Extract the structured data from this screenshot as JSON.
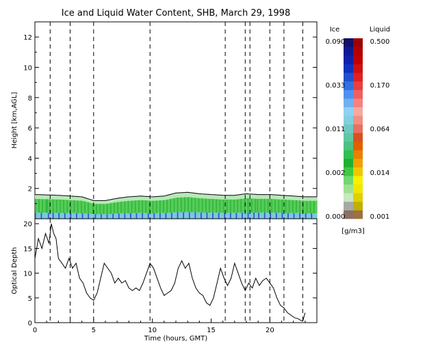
{
  "chart_data": [
    {
      "type": "heatmap",
      "title": "Ice and Liquid Water Content, SHB, March 29, 1998",
      "ylabel": "Height [km,AGL]",
      "ylim": [
        0,
        13
      ],
      "xlim": [
        0,
        24
      ],
      "y_ticks": [
        2,
        4,
        6,
        8,
        10,
        12
      ],
      "cloud_top_km": [
        [
          0,
          1.6
        ],
        [
          2,
          1.55
        ],
        [
          4,
          1.45
        ],
        [
          5,
          1.2
        ],
        [
          6,
          1.2
        ],
        [
          7,
          1.35
        ],
        [
          8,
          1.45
        ],
        [
          9,
          1.5
        ],
        [
          10,
          1.45
        ],
        [
          11,
          1.5
        ],
        [
          12,
          1.7
        ],
        [
          13,
          1.75
        ],
        [
          14,
          1.65
        ],
        [
          15,
          1.6
        ],
        [
          16,
          1.55
        ],
        [
          17,
          1.55
        ],
        [
          18,
          1.65
        ],
        [
          19,
          1.6
        ],
        [
          20,
          1.6
        ],
        [
          21,
          1.55
        ],
        [
          22,
          1.5
        ],
        [
          23,
          1.45
        ],
        [
          24,
          1.45
        ]
      ],
      "event_times_hours": [
        1.3,
        3.0,
        5.0,
        9.8,
        16.2,
        17.9,
        18.3,
        20.0,
        21.2,
        22.8
      ],
      "colorbar": {
        "ice_label": "Ice",
        "liquid_label": "Liquid",
        "units": "[g/m3]",
        "ice_ticks": [
          "0.090",
          "0.033",
          "0.011",
          "0.002",
          "0.000"
        ],
        "liquid_ticks": [
          "0.500",
          "0.170",
          "0.064",
          "0.014",
          "0.001"
        ],
        "ice_colors": [
          "#8a7060",
          "#a8a8a8",
          "#c8e8c0",
          "#a0e090",
          "#70d870",
          "#40c840",
          "#20b030",
          "#30c050",
          "#50c080",
          "#60c8a0",
          "#70c8c0",
          "#80d0e0",
          "#90d0f0",
          "#70b0f0",
          "#5090f0",
          "#3070e0",
          "#2050d0",
          "#1030c0",
          "#1020a8",
          "#101890",
          "#101070"
        ],
        "liquid_colors": [
          "#a07040",
          "#c0b000",
          "#e0d000",
          "#f0e800",
          "#f8f000",
          "#f0c800",
          "#f0a000",
          "#e88000",
          "#e06000",
          "#d85020",
          "#e87060",
          "#f09080",
          "#f8a8a0",
          "#f88080",
          "#f06060",
          "#e84040",
          "#e02020",
          "#d01010",
          "#c00000",
          "#b00000",
          "#a00000"
        ]
      }
    },
    {
      "type": "line",
      "xlabel": "Time (hours, GMT)",
      "ylabel": "Optical Depth",
      "xlim": [
        0,
        24
      ],
      "ylim": [
        0,
        21
      ],
      "x_ticks": [
        0,
        5,
        10,
        15,
        20
      ],
      "y_ticks": [
        0,
        5,
        10,
        15,
        20
      ],
      "x": [
        0.0,
        0.3,
        0.6,
        0.9,
        1.2,
        1.4,
        1.6,
        1.8,
        2.0,
        2.3,
        2.6,
        2.9,
        3.2,
        3.5,
        3.8,
        4.1,
        4.4,
        4.7,
        5.0,
        5.3,
        5.6,
        5.9,
        6.2,
        6.5,
        6.8,
        7.1,
        7.4,
        7.7,
        8.0,
        8.3,
        8.6,
        8.9,
        9.2,
        9.5,
        9.8,
        10.1,
        10.4,
        10.7,
        11.0,
        11.3,
        11.6,
        11.9,
        12.2,
        12.5,
        12.8,
        13.1,
        13.4,
        13.7,
        14.0,
        14.3,
        14.6,
        14.9,
        15.2,
        15.5,
        15.8,
        16.1,
        16.4,
        16.7,
        17.0,
        17.3,
        17.6,
        17.9,
        18.2,
        18.5,
        18.8,
        19.1,
        19.4,
        19.7,
        20.0,
        20.3,
        20.6,
        20.9,
        21.2,
        21.5,
        21.8,
        22.1,
        22.4,
        22.6,
        22.8,
        23.0
      ],
      "y": [
        13,
        17,
        15,
        18,
        16,
        20,
        18,
        17,
        13,
        12,
        11,
        13,
        11,
        12,
        9,
        8,
        6,
        5,
        4.5,
        6,
        9,
        12,
        11,
        10,
        8,
        9,
        8,
        8.5,
        7,
        6.5,
        7,
        6.5,
        8,
        10,
        12,
        11,
        9,
        7,
        5.5,
        6,
        6.5,
        8,
        11,
        12.5,
        11,
        12,
        9,
        7,
        6,
        5.5,
        4,
        3.5,
        5,
        8,
        11,
        9,
        7.5,
        9,
        12,
        10,
        8,
        6.5,
        8,
        7,
        9,
        7.5,
        8.5,
        9,
        8,
        7,
        5,
        3.5,
        3,
        2,
        1.5,
        1.0,
        0.8,
        0.5,
        0.3,
        2.0
      ]
    }
  ]
}
